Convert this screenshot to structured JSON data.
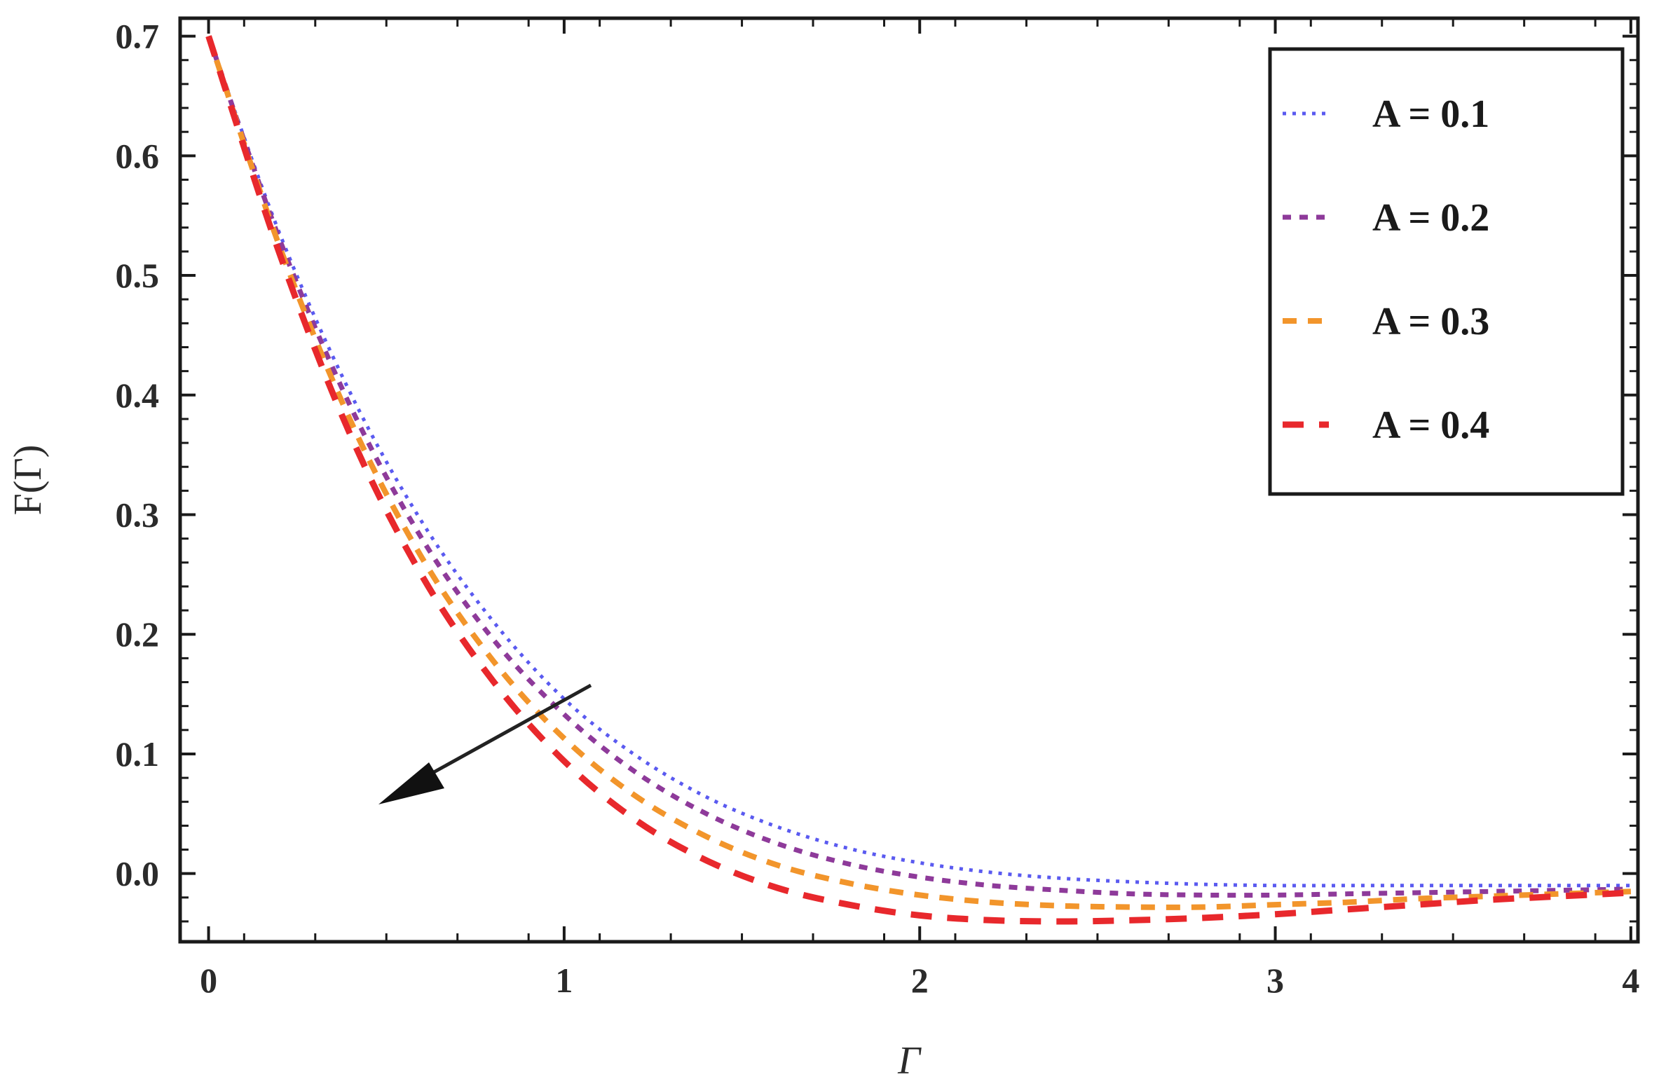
{
  "chart_data": {
    "type": "line",
    "title": "",
    "xlabel": "Γ",
    "ylabel": "F(Γ)",
    "xlim": [
      -0.08,
      4.02
    ],
    "ylim": [
      -0.057,
      0.715
    ],
    "x_ticks": [
      0,
      1,
      2,
      3,
      4
    ],
    "x_tick_labels": [
      "0",
      "1",
      "2",
      "3",
      "4"
    ],
    "y_ticks": [
      0.0,
      0.1,
      0.2,
      0.3,
      0.4,
      0.5,
      0.6,
      0.7
    ],
    "y_tick_labels": [
      "0.0",
      "0.1",
      "0.2",
      "0.3",
      "0.4",
      "0.5",
      "0.6",
      "0.7"
    ],
    "grid": false,
    "legend_position": "top-right",
    "annotation": "arrow indicating decreasing trend as A increases",
    "x": [
      0,
      0.2,
      0.4,
      0.6,
      0.8,
      1.0,
      1.2,
      1.4,
      1.6,
      1.8,
      2.0,
      2.2,
      2.4,
      2.6,
      2.8,
      3.0,
      3.2,
      3.4,
      3.6,
      3.8,
      4.0
    ],
    "series": [
      {
        "name": "A = 0.1",
        "color": "#5a5af0",
        "dash": "dotted",
        "values": [
          0.7,
          0.535,
          0.401,
          0.294,
          0.211,
          0.146,
          0.099,
          0.064,
          0.039,
          0.021,
          0.009,
          0.001,
          -0.004,
          -0.007,
          -0.009,
          -0.01,
          -0.01,
          -0.01,
          -0.01,
          -0.01,
          -0.01
        ]
      },
      {
        "name": "A = 0.2",
        "color": "#8e3a9a",
        "dash": "short-dash",
        "values": [
          0.7,
          0.53,
          0.39,
          0.28,
          0.196,
          0.133,
          0.085,
          0.05,
          0.025,
          0.008,
          -0.003,
          -0.01,
          -0.014,
          -0.017,
          -0.018,
          -0.018,
          -0.017,
          -0.016,
          -0.015,
          -0.014,
          -0.013
        ]
      },
      {
        "name": "A = 0.3",
        "color": "#f2952b",
        "dash": "dashed",
        "values": [
          0.7,
          0.524,
          0.378,
          0.264,
          0.178,
          0.113,
          0.065,
          0.031,
          0.007,
          -0.008,
          -0.018,
          -0.024,
          -0.027,
          -0.028,
          -0.028,
          -0.026,
          -0.024,
          -0.021,
          -0.019,
          -0.017,
          -0.015
        ]
      },
      {
        "name": "A = 0.4",
        "color": "#e8282c",
        "dash": "long-dash",
        "values": [
          0.7,
          0.518,
          0.366,
          0.249,
          0.161,
          0.094,
          0.045,
          0.011,
          -0.012,
          -0.026,
          -0.035,
          -0.039,
          -0.04,
          -0.039,
          -0.037,
          -0.034,
          -0.03,
          -0.026,
          -0.022,
          -0.019,
          -0.016
        ]
      }
    ]
  }
}
